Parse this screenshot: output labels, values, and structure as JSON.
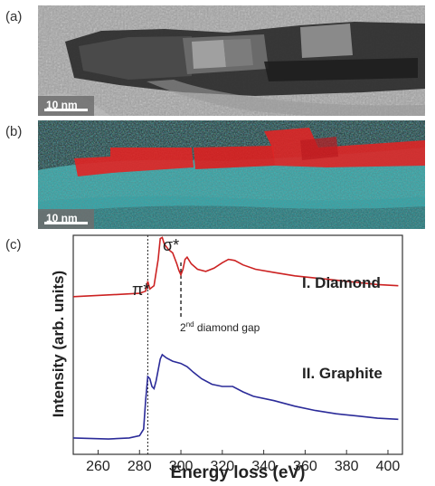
{
  "panels": {
    "a": {
      "label": "(a)",
      "scale": "10 nm"
    },
    "b": {
      "label": "(b)",
      "scale": "10 nm"
    },
    "c": {
      "label": "(c)"
    }
  },
  "chart_data": {
    "type": "line",
    "xlabel": "Energy loss (eV)",
    "ylabel": "Intensity (arb. units)",
    "xlim": [
      248,
      407
    ],
    "xticks": [
      260,
      280,
      300,
      320,
      340,
      360,
      380,
      400
    ],
    "y_ticks_shown": false,
    "series": [
      {
        "name": "I. Diamond",
        "color": "#cc2222",
        "points": [
          [
            248,
            0.72
          ],
          [
            270,
            0.73
          ],
          [
            280,
            0.735
          ],
          [
            283,
            0.745
          ],
          [
            284,
            0.79
          ],
          [
            285,
            0.755
          ],
          [
            287,
            0.77
          ],
          [
            289,
            0.89
          ],
          [
            290,
            0.985
          ],
          [
            291,
            0.99
          ],
          [
            292,
            0.96
          ],
          [
            294,
            0.935
          ],
          [
            296,
            0.92
          ],
          [
            298,
            0.87
          ],
          [
            299,
            0.84
          ],
          [
            300,
            0.82
          ],
          [
            301,
            0.845
          ],
          [
            302,
            0.89
          ],
          [
            303,
            0.9
          ],
          [
            305,
            0.87
          ],
          [
            308,
            0.845
          ],
          [
            312,
            0.835
          ],
          [
            316,
            0.85
          ],
          [
            320,
            0.875
          ],
          [
            323,
            0.89
          ],
          [
            326,
            0.885
          ],
          [
            330,
            0.865
          ],
          [
            336,
            0.845
          ],
          [
            345,
            0.83
          ],
          [
            355,
            0.815
          ],
          [
            365,
            0.805
          ],
          [
            375,
            0.795
          ],
          [
            385,
            0.785
          ],
          [
            395,
            0.775
          ],
          [
            405,
            0.77
          ]
        ]
      },
      {
        "name": "II. Graphite",
        "color": "#2b2b99",
        "points": [
          [
            248,
            0.075
          ],
          [
            265,
            0.07
          ],
          [
            275,
            0.075
          ],
          [
            280,
            0.085
          ],
          [
            282,
            0.115
          ],
          [
            283,
            0.25
          ],
          [
            284,
            0.355
          ],
          [
            285,
            0.345
          ],
          [
            286,
            0.31
          ],
          [
            287,
            0.3
          ],
          [
            288,
            0.335
          ],
          [
            290,
            0.435
          ],
          [
            291,
            0.455
          ],
          [
            293,
            0.44
          ],
          [
            296,
            0.425
          ],
          [
            300,
            0.415
          ],
          [
            303,
            0.4
          ],
          [
            306,
            0.375
          ],
          [
            310,
            0.345
          ],
          [
            315,
            0.32
          ],
          [
            320,
            0.31
          ],
          [
            325,
            0.31
          ],
          [
            330,
            0.285
          ],
          [
            335,
            0.265
          ],
          [
            345,
            0.245
          ],
          [
            355,
            0.22
          ],
          [
            365,
            0.2
          ],
          [
            375,
            0.185
          ],
          [
            385,
            0.175
          ],
          [
            395,
            0.165
          ],
          [
            405,
            0.16
          ]
        ]
      }
    ],
    "annotations": {
      "pi_star": {
        "text": "π*",
        "x": 284
      },
      "sigma_star": {
        "text": "σ*"
      },
      "gap_label": {
        "super": "nd",
        "prefix": "2",
        "rest": " diamond gap",
        "x": 300
      }
    }
  }
}
